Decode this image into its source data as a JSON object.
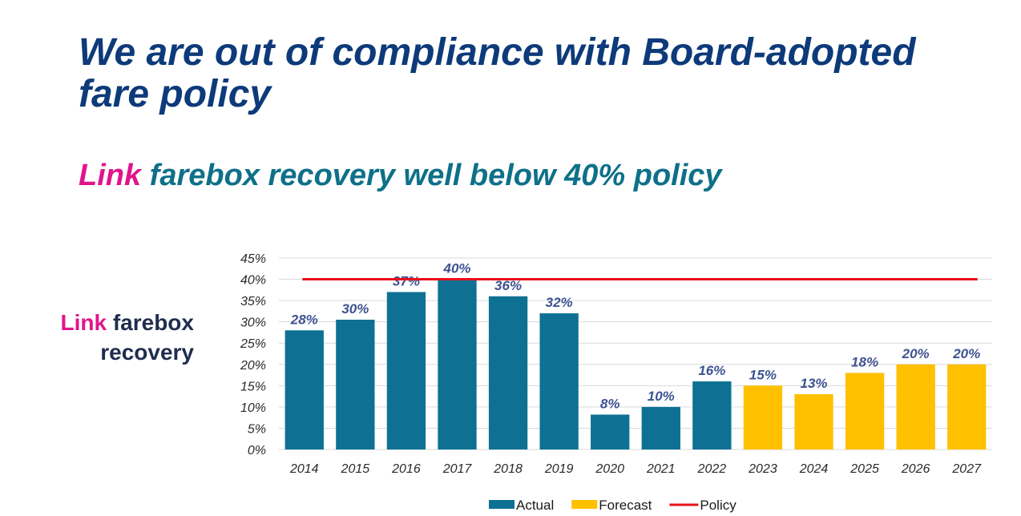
{
  "slide": {
    "title": "We are out of compliance with Board-adopted fare policy",
    "subtitle_accent": "Link",
    "subtitle_rest": " farebox recovery well below 40% policy",
    "axis_label_accent": "Link",
    "axis_label_rest1": " farebox",
    "axis_label_rest2": "recovery"
  },
  "colors": {
    "actual": "#0e7193",
    "forecast": "#ffc000",
    "policy": "#e8111b",
    "grid": "#d9d9d9"
  },
  "chart_data": {
    "type": "bar",
    "title": "",
    "xlabel": "",
    "ylabel": "Link farebox recovery",
    "ylim": [
      0,
      45
    ],
    "ytick_step": 5,
    "categories": [
      "2014",
      "2015",
      "2016",
      "2017",
      "2018",
      "2019",
      "2020",
      "2021",
      "2022",
      "2023",
      "2024",
      "2025",
      "2026",
      "2027"
    ],
    "values": [
      28,
      30.5,
      37,
      40,
      36,
      32,
      8.2,
      10,
      16,
      15,
      13,
      18,
      20,
      20
    ],
    "data_labels": [
      "28%",
      "30%",
      "37%",
      "40%",
      "36%",
      "32%",
      "8%",
      "10%",
      "16%",
      "15%",
      "13%",
      "18%",
      "20%",
      "20%"
    ],
    "series_of_bar": [
      "Actual",
      "Actual",
      "Actual",
      "Actual",
      "Actual",
      "Actual",
      "Actual",
      "Actual",
      "Actual",
      "Forecast",
      "Forecast",
      "Forecast",
      "Forecast",
      "Forecast"
    ],
    "policy_value": 40,
    "legend": [
      {
        "name": "Actual",
        "kind": "bar",
        "color_key": "actual"
      },
      {
        "name": "Forecast",
        "kind": "bar",
        "color_key": "forecast"
      },
      {
        "name": "Policy",
        "kind": "line",
        "color_key": "policy"
      }
    ],
    "legend_position": "bottom",
    "grid": true
  }
}
